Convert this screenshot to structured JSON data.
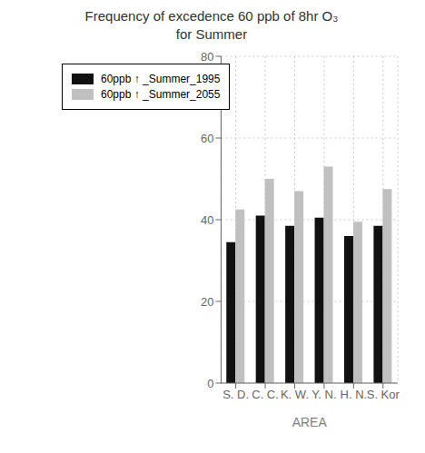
{
  "chart_data": {
    "type": "bar",
    "title": "Frequency of excedence 60 ppb of 8hr O₃\nfor Summer",
    "xlabel": "AREA",
    "categories": [
      "S. D.",
      "C. C.",
      "K. W.",
      "Y. N.",
      "H. N.",
      "S. Kor"
    ],
    "series": [
      {
        "name": "60ppb ↑ _Summer_1995",
        "color": "#111111",
        "values": [
          34.5,
          41.0,
          38.5,
          40.5,
          36.0,
          38.5
        ]
      },
      {
        "name": "60ppb ↑ _Summer_2055",
        "color": "#c0c0c0",
        "values": [
          42.5,
          50.0,
          47.0,
          53.0,
          39.5,
          47.5
        ]
      }
    ],
    "ylim": [
      0,
      80
    ],
    "yticks": [
      0,
      20,
      40,
      60,
      80
    ],
    "grid": true,
    "legend": "upper left"
  }
}
